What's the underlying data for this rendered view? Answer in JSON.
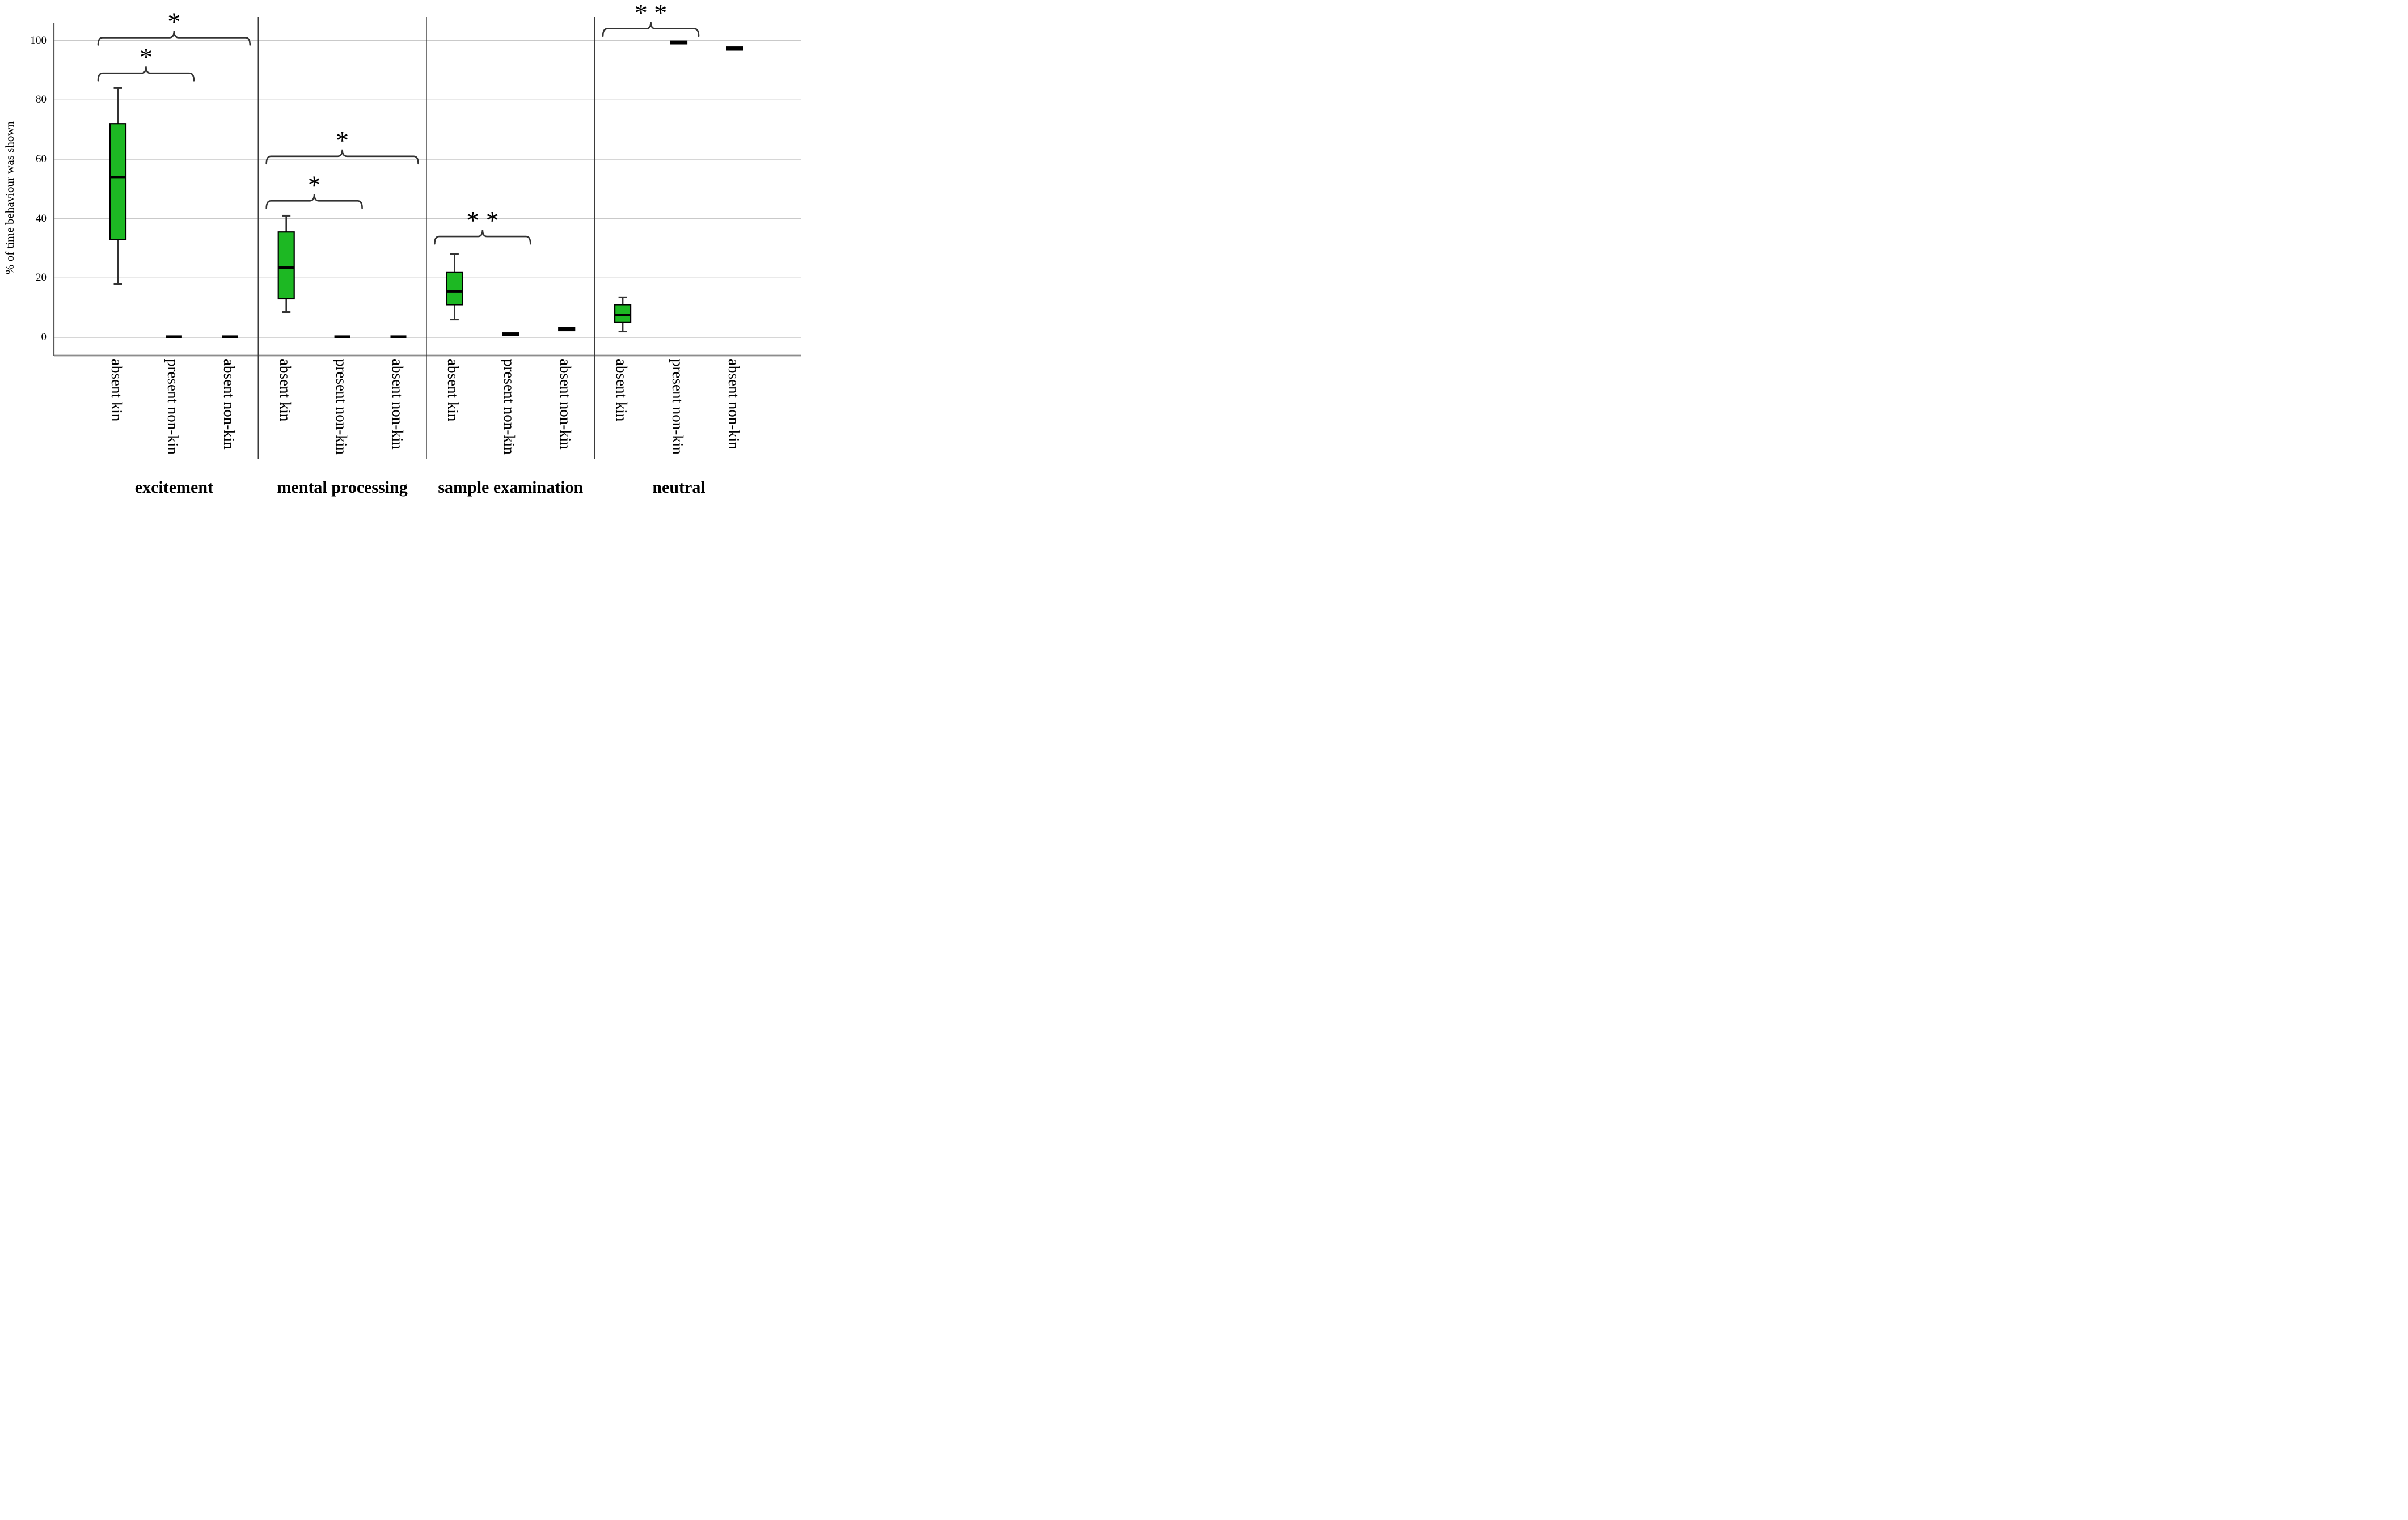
{
  "chart_data": {
    "type": "boxplot",
    "title": "",
    "ylabel": "% of time behaviour was shown",
    "xlabel": "",
    "ylim": [
      -7,
      114
    ],
    "yticks": [
      0,
      20,
      40,
      60,
      80,
      100
    ],
    "grid": "horizontal",
    "legend": "none",
    "conditions": [
      "absent kin",
      "present non-kin",
      "absent non-kin"
    ],
    "groups": [
      {
        "label": "excitement",
        "boxes": [
          {
            "condition": "absent kin",
            "min": 18,
            "q1": 33,
            "median": 54,
            "q3": 72,
            "max": 84
          },
          {
            "condition": "present non-kin",
            "min": 0,
            "q1": 0,
            "median": 0,
            "q3": 0,
            "max": 0
          },
          {
            "condition": "absent non-kin",
            "min": 0,
            "q1": 0,
            "median": 0,
            "q3": 0,
            "max": 0
          }
        ]
      },
      {
        "label": "mental processing",
        "boxes": [
          {
            "condition": "absent kin",
            "min": 8.5,
            "q1": 13,
            "median": 23.5,
            "q3": 35.5,
            "max": 41
          },
          {
            "condition": "present non-kin",
            "min": 0,
            "q1": 0,
            "median": 0,
            "q3": 0,
            "max": 0
          },
          {
            "condition": "absent non-kin",
            "min": 0,
            "q1": 0,
            "median": 0,
            "q3": 0,
            "max": 0
          }
        ]
      },
      {
        "label": "sample examination",
        "boxes": [
          {
            "condition": "absent kin",
            "min": 6,
            "q1": 11,
            "median": 15.5,
            "q3": 22,
            "max": 28
          },
          {
            "condition": "present non-kin",
            "min": 0.4,
            "q1": 0.6,
            "median": 1,
            "q3": 1.5,
            "max": 1.7
          },
          {
            "condition": "absent non-kin",
            "min": 2.1,
            "q1": 2.3,
            "median": 2.8,
            "q3": 3.3,
            "max": 3.5
          }
        ]
      },
      {
        "label": "neutral",
        "boxes": [
          {
            "condition": "absent kin",
            "min": 2,
            "q1": 5,
            "median": 7.5,
            "q3": 11,
            "max": 13.5
          },
          {
            "condition": "present non-kin",
            "min": 98.5,
            "q1": 98.9,
            "median": 99.3,
            "q3": 99.8,
            "max": 100
          },
          {
            "condition": "absent non-kin",
            "min": 96.5,
            "q1": 96.8,
            "median": 97.3,
            "q3": 97.8,
            "max": 98.1
          }
        ]
      }
    ],
    "significance_brackets": [
      {
        "group": "excitement",
        "between": [
          "absent kin",
          "absent non-kin"
        ],
        "from_slot": 0,
        "to_slot": 2,
        "height": 101,
        "label": "*"
      },
      {
        "group": "excitement",
        "between": [
          "absent kin",
          "present non-kin"
        ],
        "from_slot": 0,
        "to_slot": 1,
        "height": 89,
        "label": "*"
      },
      {
        "group": "mental processing",
        "between": [
          "absent kin",
          "absent non-kin"
        ],
        "from_slot": 3,
        "to_slot": 5,
        "height": 61,
        "label": "*"
      },
      {
        "group": "mental processing",
        "between": [
          "absent kin",
          "present non-kin"
        ],
        "from_slot": 3,
        "to_slot": 4,
        "height": 46,
        "label": "*"
      },
      {
        "group": "sample examination",
        "between": [
          "absent kin",
          "present non-kin"
        ],
        "from_slot": 6,
        "to_slot": 7,
        "height": 34,
        "label": "* *"
      },
      {
        "group": "neutral",
        "between": [
          "absent kin",
          "present non-kin"
        ],
        "from_slot": 9,
        "to_slot": 10,
        "height": 104,
        "label": "* *"
      }
    ],
    "colors": {
      "box_fill": "#1db823",
      "box_border": "#000000",
      "median": "#000000",
      "whisker": "#333333",
      "grid": "#c9c9c9",
      "axis": "#595959",
      "frame": "#8c8c8c",
      "divider": "#3a3a3a",
      "bracket": "#333333",
      "asterisk": "#000000",
      "background": "#ffffff"
    }
  }
}
